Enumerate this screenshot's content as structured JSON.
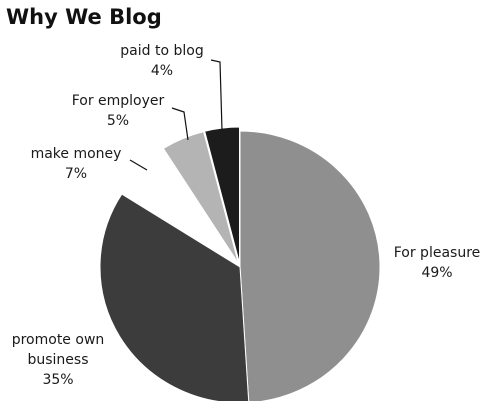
{
  "chart_data": {
    "type": "pie",
    "title": "Why We Blog",
    "slices": [
      {
        "label": "For pleasure",
        "value_label": "49%",
        "value": 49,
        "color": "#8f8f8f"
      },
      {
        "label": "promote own business",
        "value_label": "35%",
        "value": 35,
        "color": "#3c3c3c"
      },
      {
        "label": "make money",
        "value_label": "7%",
        "value": 7,
        "color": "#ffffff"
      },
      {
        "label": "For employer",
        "value_label": "5%",
        "value": 5,
        "color": "#b4b4b4"
      },
      {
        "label": "paid to blog",
        "value_label": "4%",
        "value": 4,
        "color": "#1c1c1c"
      }
    ]
  }
}
